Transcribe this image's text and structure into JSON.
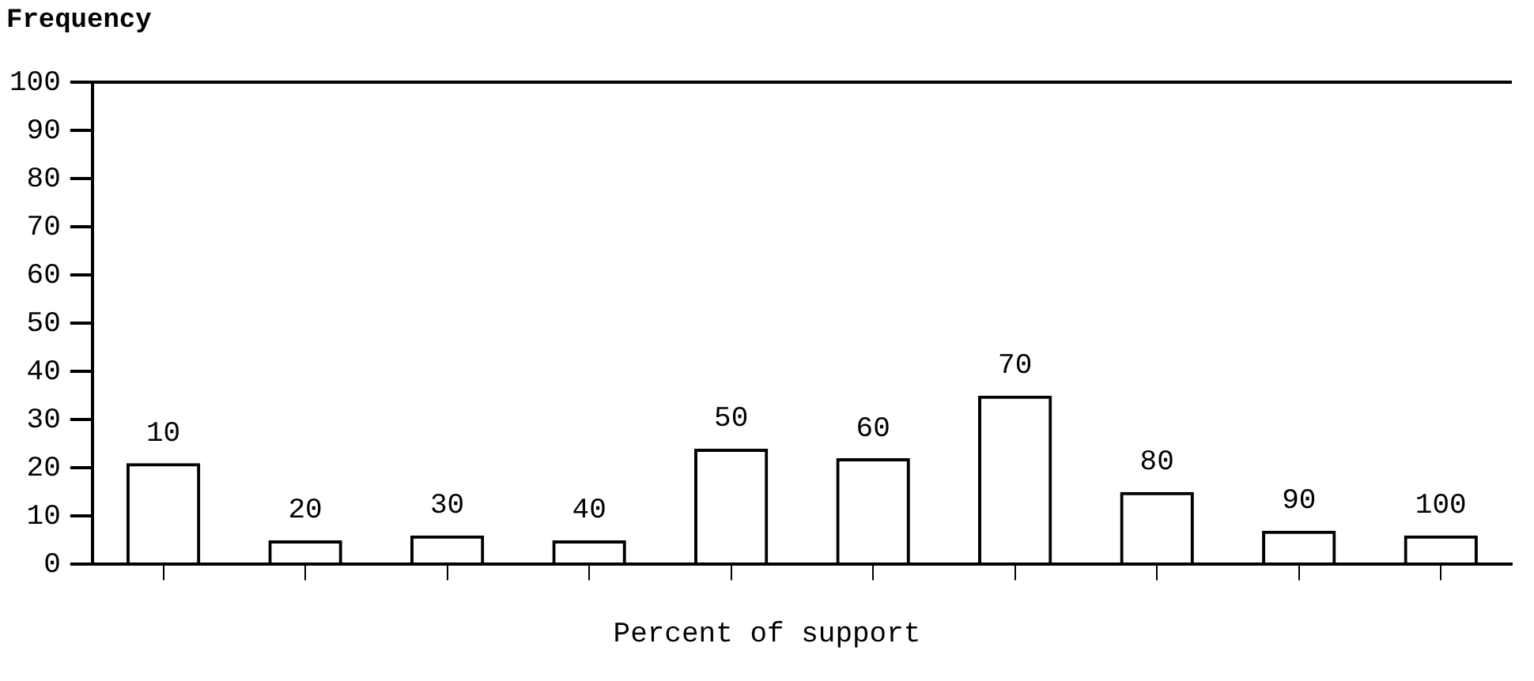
{
  "chart_data": {
    "type": "bar",
    "ylabel": "Frequency",
    "xlabel": "Percent of support",
    "categories": [
      "10",
      "20",
      "30",
      "40",
      "50",
      "60",
      "70",
      "80",
      "90",
      "100"
    ],
    "values": [
      21,
      5,
      6,
      5,
      24,
      22,
      35,
      15,
      7,
      6
    ],
    "color": "#000000",
    "ylim": [
      0,
      100
    ],
    "yticks": [
      0,
      10,
      20,
      30,
      40,
      50,
      60,
      70,
      80,
      90,
      100
    ],
    "grid": false,
    "legend": false,
    "tick_labels": "y"
  }
}
